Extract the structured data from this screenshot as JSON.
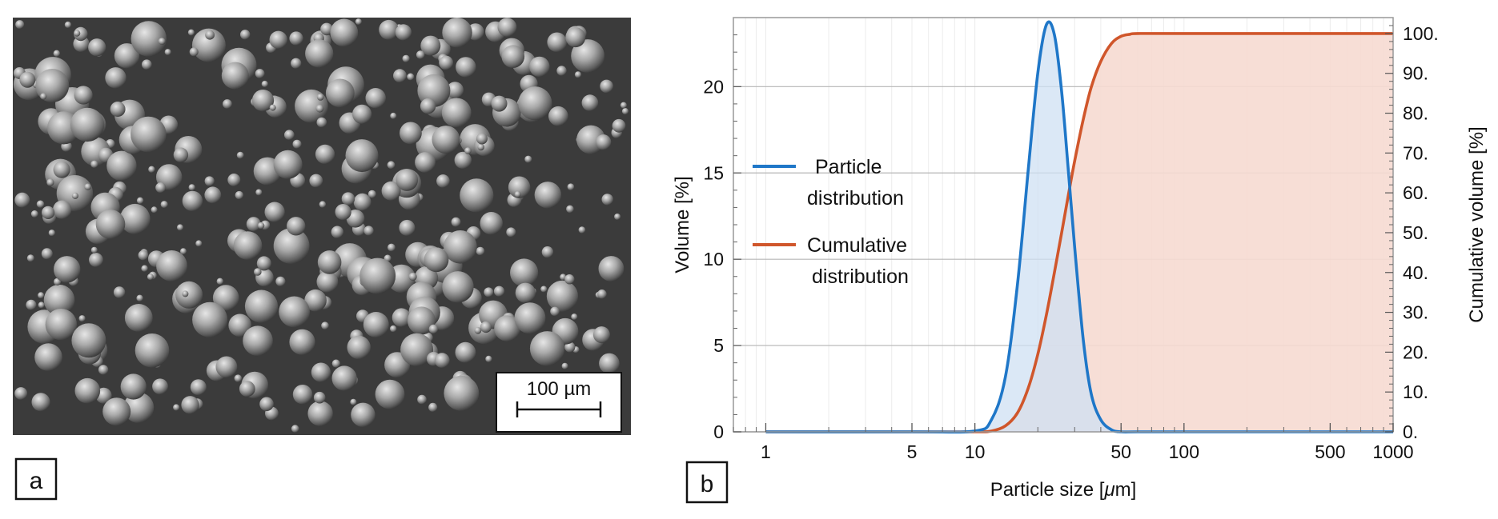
{
  "panels": {
    "a": {
      "label": "a",
      "scale_bar_text": "100 µm"
    },
    "b": {
      "label": "b"
    }
  },
  "chart_data": {
    "type": "line",
    "xscale": "log",
    "xlim": [
      0.7,
      1000
    ],
    "ylim": [
      0,
      24
    ],
    "y2lim": [
      0,
      104
    ],
    "xlabel_prefix": "Particle size [",
    "xlabel_unit": "μ",
    "xlabel_suffix": "m]",
    "ylabel": "Volume [%]",
    "y2label": "Cumulative volume [%]",
    "grid": true,
    "legend_position": "left",
    "x_ticks": [
      1,
      5,
      10,
      50,
      100,
      500,
      1000
    ],
    "x_tick_labels": [
      "1",
      "5",
      "10",
      "50",
      "100",
      "500",
      "1000"
    ],
    "y_ticks": [
      0,
      5,
      10,
      15,
      20
    ],
    "y_tick_labels": [
      "0",
      "5",
      "10",
      "15",
      "20"
    ],
    "y2_ticks": [
      0,
      10,
      20,
      30,
      40,
      50,
      60,
      70,
      80,
      90,
      100
    ],
    "y2_tick_labels": [
      "0.",
      "10.",
      "20.",
      "30.",
      "40.",
      "50.",
      "60.",
      "70.",
      "80.",
      "90.",
      "100."
    ],
    "series": [
      {
        "name_lines": [
          "Particle",
          "distribution"
        ],
        "axis": "left",
        "color": "#1f77c8",
        "fill": "#cfe0f3",
        "x": [
          1,
          5,
          10,
          12,
          14,
          16,
          18,
          20,
          22,
          24,
          26,
          28,
          30,
          33,
          36,
          40,
          45,
          50,
          60,
          100,
          500,
          1000
        ],
        "y": [
          0,
          0,
          0.05,
          0.7,
          3.2,
          8.6,
          15.2,
          20.8,
          23.6,
          23.0,
          19.7,
          15.1,
          10.7,
          5.3,
          2.2,
          0.7,
          0.12,
          0,
          0,
          0,
          0,
          0
        ]
      },
      {
        "name_lines": [
          "Cumulative",
          "distribution"
        ],
        "axis": "right",
        "color": "#d0562b",
        "fill": "#f6dad2",
        "x": [
          1,
          5,
          10,
          12,
          14,
          16,
          18,
          20,
          22,
          24,
          26,
          28,
          30,
          33,
          36,
          40,
          45,
          50,
          55,
          60,
          100,
          500,
          1000
        ],
        "y": [
          0,
          0,
          0,
          0.2,
          1.5,
          4.8,
          11,
          19.5,
          29.5,
          40,
          50,
          59.5,
          68,
          78.5,
          86.5,
          93,
          97.5,
          99.3,
          99.8,
          100,
          100,
          100,
          100
        ]
      }
    ]
  }
}
